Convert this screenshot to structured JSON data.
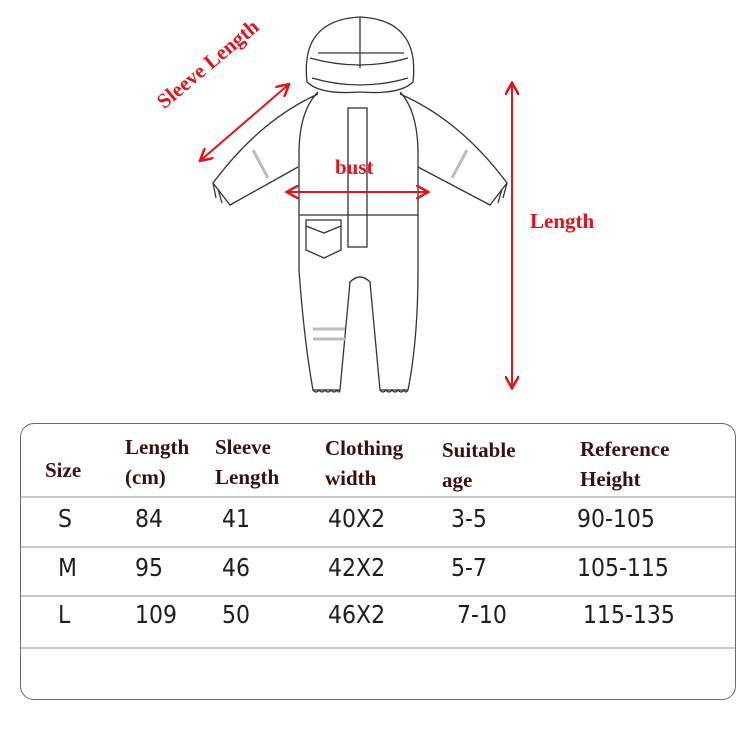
{
  "diagram": {
    "labels": {
      "sleeve_length": "Sleeve Length",
      "bust": "bust",
      "length": "Length"
    },
    "accent_color": "#e0141c"
  },
  "size_table": {
    "headers": [
      {
        "line1": "Size",
        "line2": ""
      },
      {
        "line1": "Length",
        "line2": "(cm)"
      },
      {
        "line1": "Sleeve",
        "line2": "Length"
      },
      {
        "line1": "Clothing",
        "line2": "width"
      },
      {
        "line1": "Suitable",
        "line2": "age"
      },
      {
        "line1": "Reference",
        "line2": "Height"
      }
    ],
    "rows": [
      [
        "S",
        "84",
        "41",
        "40X2",
        "3-5",
        "90-105"
      ],
      [
        "M",
        "95",
        "46",
        "42X2",
        "5-7",
        "105-115"
      ],
      [
        "L",
        "109",
        "50",
        "46X2",
        "7-10",
        "115-135"
      ]
    ]
  }
}
